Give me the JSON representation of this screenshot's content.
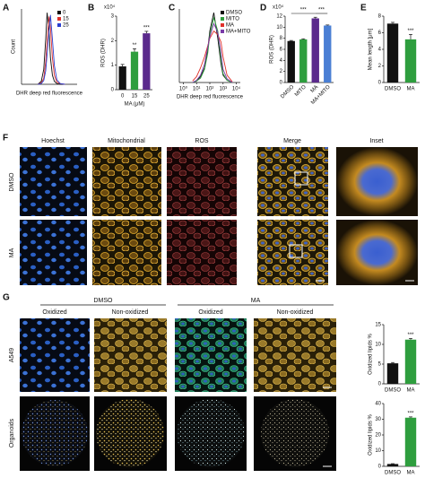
{
  "panel_labels": [
    "A",
    "B",
    "C",
    "D",
    "E",
    "F",
    "G"
  ],
  "chart_data": [
    {
      "type": "line",
      "ylabel": "Count",
      "xlabel": "DHR deep red fluorescence",
      "log_x": true,
      "xlim": [
        1,
        100000
      ],
      "ylim": [
        0,
        100
      ],
      "legend": "upper-right",
      "x": [
        30,
        60,
        100,
        150,
        200,
        300,
        400,
        600,
        900,
        1500,
        3000,
        8000
      ],
      "series": [
        {
          "name": "0",
          "color": "#111111",
          "values": [
            0,
            4,
            20,
            60,
            95,
            70,
            35,
            12,
            4,
            1,
            0,
            0
          ]
        },
        {
          "name": "15",
          "color": "#e0302a",
          "values": [
            0,
            2,
            8,
            30,
            60,
            90,
            75,
            35,
            12,
            3,
            1,
            0
          ]
        },
        {
          "name": "25",
          "color": "#2a3fd0",
          "values": [
            0,
            1,
            5,
            18,
            40,
            70,
            92,
            60,
            25,
            6,
            1,
            0
          ]
        }
      ]
    },
    {
      "type": "bar",
      "multiplier": "x10⁴",
      "ylabel": "ROS (DHR)",
      "xlabel": "MA (μM)",
      "categories": [
        "0",
        "15",
        "25"
      ],
      "values": [
        0.95,
        1.55,
        2.3
      ],
      "errors": [
        0.08,
        0.12,
        0.08
      ],
      "colors": [
        "#111111",
        "#2e9e3e",
        "#5b2a8c"
      ],
      "significance": [
        null,
        "**",
        "***"
      ],
      "ylim": [
        0,
        3
      ],
      "yticks": [
        0,
        1,
        2,
        3
      ]
    },
    {
      "type": "line",
      "xlabel": "DHR deep red fluorescence",
      "log_x": true,
      "xlim": [
        0.5,
        20000
      ],
      "ylim": [
        0,
        100
      ],
      "legend": "upper-right",
      "xticks": [
        {
          "value": 1,
          "label": "10⁰"
        },
        {
          "value": 10,
          "label": "10¹"
        },
        {
          "value": 100,
          "label": "10²"
        },
        {
          "value": 1000,
          "label": "10³"
        },
        {
          "value": 10000,
          "label": "10⁴"
        }
      ],
      "x": [
        5,
        10,
        20,
        40,
        70,
        100,
        200,
        400,
        700,
        1000,
        2000,
        5000
      ],
      "series": [
        {
          "name": "DMSO",
          "color": "#111111",
          "values": [
            0,
            2,
            8,
            20,
            45,
            70,
            95,
            60,
            25,
            10,
            3,
            0
          ]
        },
        {
          "name": "MITO",
          "color": "#2e9e3e",
          "values": [
            0,
            2,
            6,
            18,
            40,
            65,
            88,
            70,
            30,
            12,
            3,
            0
          ]
        },
        {
          "name": "MA",
          "color": "#e0302a",
          "values": [
            2,
            8,
            20,
            35,
            50,
            60,
            70,
            65,
            55,
            35,
            10,
            1
          ]
        },
        {
          "name": "MA+MITO",
          "color": "#7a3aa8",
          "values": [
            0,
            3,
            10,
            25,
            48,
            62,
            80,
            68,
            40,
            18,
            5,
            0
          ]
        }
      ]
    },
    {
      "type": "bar",
      "multiplier": "x10⁴",
      "ylabel": "ROS (DHR)",
      "rotate_labels": true,
      "categories": [
        "DMSO",
        "MITO",
        "MA",
        "MA+MITO"
      ],
      "values": [
        7.5,
        7.8,
        11.6,
        10.3
      ],
      "errors": [
        0.1,
        0.1,
        0.2,
        0.1
      ],
      "colors": [
        "#111111",
        "#2e9e3e",
        "#5b2a8c",
        "#4a7fd4"
      ],
      "comparisons": [
        {
          "from": 0,
          "to": 2,
          "label": "***"
        },
        {
          "from": 2,
          "to": 3,
          "label": "***"
        }
      ],
      "ylim": [
        0,
        12
      ],
      "yticks": [
        0,
        2,
        4,
        6,
        8,
        10,
        12
      ]
    },
    {
      "type": "bar",
      "ylabel": "Mean length [μm]",
      "categories": [
        "DMSO",
        "MA"
      ],
      "values": [
        7.1,
        5.2
      ],
      "errors": [
        0.15,
        0.6
      ],
      "colors": [
        "#111111",
        "#2e9e3e"
      ],
      "significance": [
        null,
        "***"
      ],
      "ylim": [
        0,
        8
      ],
      "yticks": [
        0,
        2,
        4,
        6,
        8
      ]
    },
    {
      "type": "bar",
      "ylabel": "Oxidized lipids %",
      "categories": [
        "DMSO",
        "MA"
      ],
      "values": [
        5.2,
        11.2
      ],
      "errors": [
        0.2,
        0.3
      ],
      "colors": [
        "#111111",
        "#2e9e3e"
      ],
      "significance": [
        null,
        "***"
      ],
      "ylim": [
        0,
        15
      ],
      "yticks": [
        0,
        5,
        10,
        15
      ]
    },
    {
      "type": "bar",
      "ylabel": "Oxidized lipids %",
      "categories": [
        "DMSO",
        "MA"
      ],
      "values": [
        1.5,
        31
      ],
      "errors": [
        0.2,
        0.5
      ],
      "colors": [
        "#111111",
        "#2e9e3e"
      ],
      "significance": [
        null,
        "***"
      ],
      "ylim": [
        0,
        40
      ],
      "yticks": [
        0,
        10,
        20,
        30,
        40
      ]
    }
  ],
  "panel_f": {
    "columns": [
      "Hoechst",
      "Mitochondrial",
      "ROS",
      "Merge",
      "Inset"
    ],
    "rows": [
      "DMSO",
      "MA"
    ]
  },
  "panel_g": {
    "groups": [
      "DMSO",
      "MA"
    ],
    "columns": [
      "Oxidized",
      "Non-oxidized",
      "Oxidized",
      "Non-oxidized"
    ],
    "rows": [
      "A549",
      "Organoids"
    ]
  }
}
